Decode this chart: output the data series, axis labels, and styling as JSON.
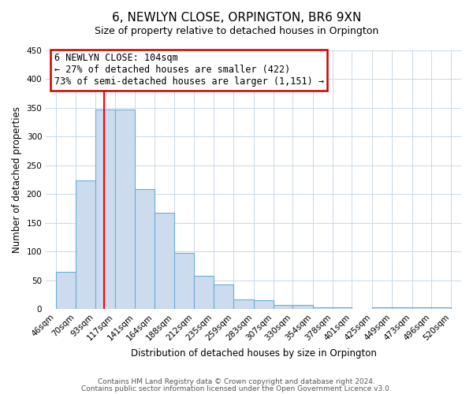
{
  "title": "6, NEWLYN CLOSE, ORPINGTON, BR6 9XN",
  "subtitle": "Size of property relative to detached houses in Orpington",
  "xlabel": "Distribution of detached houses by size in Orpington",
  "ylabel": "Number of detached properties",
  "bin_edges": [
    46,
    70,
    93,
    117,
    141,
    164,
    188,
    212,
    235,
    259,
    283,
    307,
    330,
    354,
    378,
    401,
    425,
    449,
    473,
    496,
    520
  ],
  "bar_heights": [
    65,
    223,
    347,
    347,
    208,
    167,
    98,
    57,
    43,
    16,
    15,
    7,
    7,
    3,
    3,
    0,
    3,
    3,
    3,
    3
  ],
  "bar_color": "#ccdcee",
  "bar_edge_color": "#6aaed6",
  "x_tick_labels": [
    "46sqm",
    "70sqm",
    "93sqm",
    "117sqm",
    "141sqm",
    "164sqm",
    "188sqm",
    "212sqm",
    "235sqm",
    "259sqm",
    "283sqm",
    "307sqm",
    "330sqm",
    "354sqm",
    "378sqm",
    "401sqm",
    "425sqm",
    "449sqm",
    "473sqm",
    "496sqm",
    "520sqm"
  ],
  "ylim": [
    0,
    450
  ],
  "yticks": [
    0,
    50,
    100,
    150,
    200,
    250,
    300,
    350,
    400,
    450
  ],
  "red_line_x": 104,
  "annotation_title": "6 NEWLYN CLOSE: 104sqm",
  "annotation_line1": "← 27% of detached houses are smaller (422)",
  "annotation_line2": "73% of semi-detached houses are larger (1,151) →",
  "footer_line1": "Contains HM Land Registry data © Crown copyright and database right 2024.",
  "footer_line2": "Contains public sector information licensed under the Open Government Licence v3.0.",
  "bg_color": "#ffffff",
  "grid_color": "#c8d8e8",
  "title_fontsize": 11,
  "subtitle_fontsize": 9,
  "axis_label_fontsize": 8.5,
  "tick_fontsize": 7.5,
  "annotation_fontsize": 8.5,
  "footer_fontsize": 6.5
}
